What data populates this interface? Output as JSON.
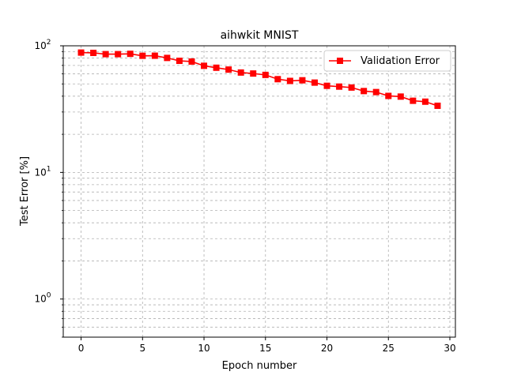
{
  "chart_data": {
    "type": "line",
    "title": "aihwkit MNIST",
    "xlabel": "Epoch number",
    "ylabel": "Test Error [%]",
    "xlim": [
      -1.45,
      30.45
    ],
    "ylim": [
      0.5,
      100
    ],
    "yscale": "log",
    "grid": true,
    "legend_position": "top-right",
    "x_ticks": [
      0,
      5,
      10,
      15,
      20,
      25,
      30
    ],
    "y_ticks": [
      {
        "value": 1,
        "base": "10",
        "exp": "0"
      },
      {
        "value": 10,
        "base": "10",
        "exp": "1"
      },
      {
        "value": 100,
        "base": "10",
        "exp": "2"
      }
    ],
    "series": [
      {
        "name": "Validation Error",
        "color": "#ff0000",
        "marker": "square",
        "x": [
          0,
          1,
          2,
          3,
          4,
          5,
          6,
          7,
          8,
          9,
          10,
          11,
          12,
          13,
          14,
          15,
          16,
          17,
          18,
          19,
          20,
          21,
          22,
          23,
          24,
          25,
          26,
          27,
          28,
          29
        ],
        "values": [
          88.4,
          87.9,
          85.9,
          85.9,
          86.4,
          83.4,
          83.5,
          80.2,
          76.1,
          75.1,
          69.5,
          67.1,
          64.9,
          61.5,
          60.4,
          58.9,
          54.5,
          52.8,
          53.4,
          51.2,
          48.3,
          47.6,
          46.8,
          43.9,
          43.1,
          40.2,
          39.7,
          36.8,
          36.2,
          33.6
        ]
      }
    ]
  }
}
